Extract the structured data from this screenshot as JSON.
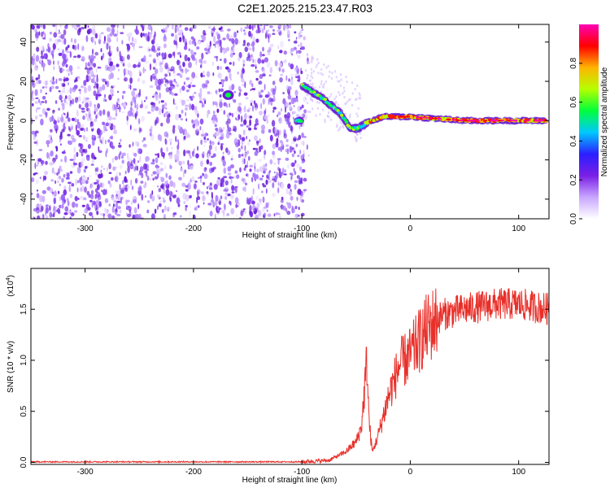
{
  "title": "C2E1.2025.215.23.47.R03",
  "chart_data": [
    {
      "type": "heatmap",
      "xlabel": "Height of straight line (km)",
      "ylabel": "Frequency (Hz)",
      "xlim": [
        -350,
        128
      ],
      "ylim": [
        -50,
        49
      ],
      "xticks": [
        -300,
        -200,
        -100,
        0,
        100
      ],
      "yticks": [
        -40,
        -20,
        0,
        20,
        40
      ],
      "colorbar": {
        "label": "Normalized spectral amplitude",
        "range": [
          0,
          1
        ],
        "ticks": [
          0.0,
          0.2,
          0.4,
          0.6,
          0.8
        ],
        "tick_labels": [
          "0.0",
          "0.2",
          "0.4",
          "0.6",
          "0.8"
        ],
        "colors": [
          "#ffffff",
          "#c8a6ff",
          "#7a1fe6",
          "#2b1fff",
          "#00c8ff",
          "#00ff3c",
          "#b4ff00",
          "#ffb400",
          "#ff0000",
          "#ff00b4"
        ]
      },
      "noise_region_x": [
        -350,
        -97
      ],
      "signal_track": [
        {
          "x": -100,
          "y": 18
        },
        {
          "x": -80,
          "y": 11
        },
        {
          "x": -65,
          "y": 4
        },
        {
          "x": -55,
          "y": -4
        },
        {
          "x": -48,
          "y": -4
        },
        {
          "x": -40,
          "y": -1
        },
        {
          "x": -25,
          "y": 2
        },
        {
          "x": 0,
          "y": 2
        },
        {
          "x": 25,
          "y": 1
        },
        {
          "x": 50,
          "y": 0
        },
        {
          "x": 125,
          "y": 0
        }
      ],
      "isolated_blob": {
        "x": -168,
        "y": 13
      }
    },
    {
      "type": "line",
      "xlabel": "Height of straight line (km)",
      "ylabel": "SNR (10 * v/v)",
      "multiplier": "(x10",
      "multiplier_exp": "4",
      "xlim": [
        -350,
        128
      ],
      "ylim": [
        -0.02,
        1.9
      ],
      "xticks": [
        -300,
        -200,
        -100,
        0,
        100
      ],
      "yticks": [
        0.0,
        0.5,
        1.0,
        1.5
      ],
      "ytick_labels": [
        "0.0",
        "0.5",
        "1.0",
        "1.5"
      ],
      "series": [
        {
          "color": "#e8302a",
          "envelope": [
            {
              "x": -350,
              "y": 0.005
            },
            {
              "x": -100,
              "y": 0.005
            },
            {
              "x": -75,
              "y": 0.02
            },
            {
              "x": -60,
              "y": 0.1
            },
            {
              "x": -50,
              "y": 0.2
            },
            {
              "x": -45,
              "y": 0.35
            },
            {
              "x": -40,
              "y": 1.0
            },
            {
              "x": -38,
              "y": 0.4
            },
            {
              "x": -35,
              "y": 0.1
            },
            {
              "x": -30,
              "y": 0.25
            },
            {
              "x": -20,
              "y": 0.65
            },
            {
              "x": -10,
              "y": 0.95
            },
            {
              "x": 0,
              "y": 1.05
            },
            {
              "x": 15,
              "y": 1.3
            },
            {
              "x": 30,
              "y": 1.45
            },
            {
              "x": 50,
              "y": 1.5
            },
            {
              "x": 80,
              "y": 1.55
            },
            {
              "x": 100,
              "y": 1.55
            },
            {
              "x": 128,
              "y": 1.5
            }
          ]
        }
      ]
    }
  ]
}
